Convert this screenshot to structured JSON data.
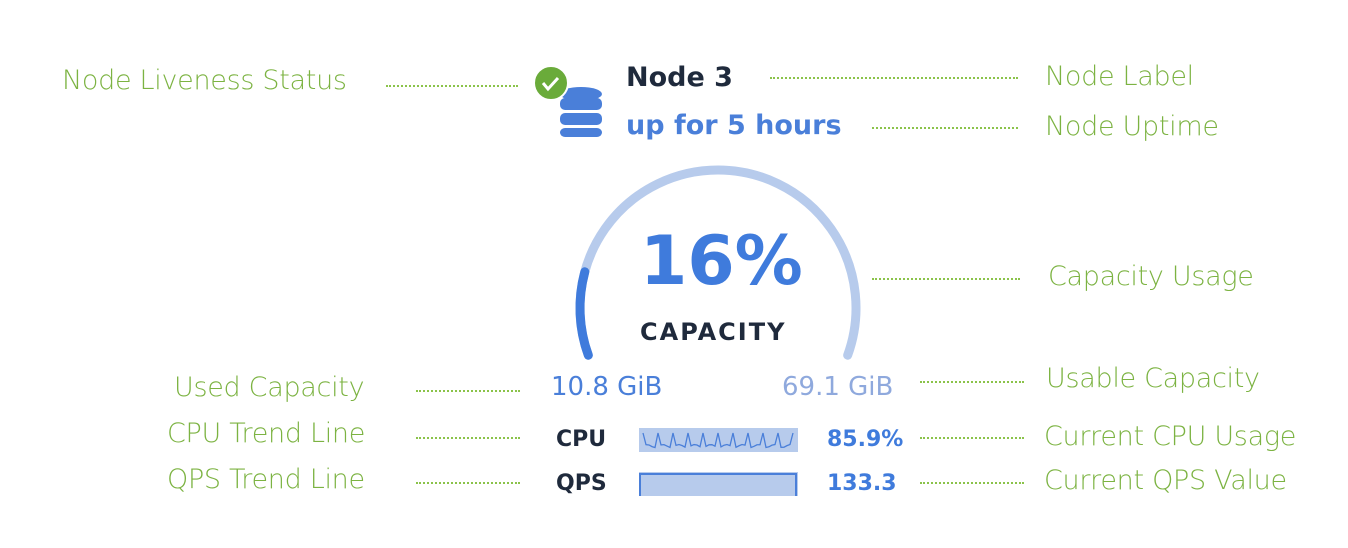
{
  "node": {
    "label": "Node 3",
    "uptime": "up for 5 hours",
    "liveness_icon": "check-circle-icon",
    "node_icon": "database-icon"
  },
  "capacity": {
    "percent_text": "16%",
    "percent": 16,
    "label": "CAPACITY",
    "used": "10.8 GiB",
    "usable": "69.1 GiB"
  },
  "metrics": [
    {
      "label": "CPU",
      "value": "85.9%"
    },
    {
      "label": "QPS",
      "value": "133.3"
    }
  ],
  "annotations": {
    "liveness": "Node Liveness Status",
    "label": "Node Label",
    "uptime": "Node Uptime",
    "capacity_usage": "Capacity Usage",
    "used": "Used Capacity",
    "usable": "Usable Capacity",
    "cpu_trend": "CPU Trend Line",
    "cpu_current": "Current CPU Usage",
    "qps_trend": "QPS Trend Line",
    "qps_current": "Current QPS Value"
  },
  "colors": {
    "accent": "#3f7bdc",
    "gauge_track": "#b7cbec",
    "annotation": "#7cb342",
    "ok": "#6aab3a"
  }
}
